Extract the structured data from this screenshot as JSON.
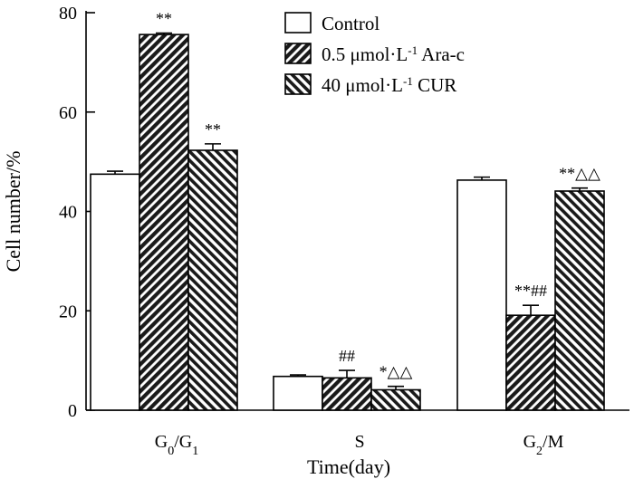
{
  "chart_data": {
    "type": "bar",
    "categories": [
      {
        "main": "G",
        "sub1": "0",
        "mid": "/G",
        "sub2": "1"
      },
      {
        "main": "S",
        "sub1": "",
        "mid": "",
        "sub2": ""
      },
      {
        "main": "G",
        "sub1": "2",
        "mid": "/M",
        "sub2": ""
      }
    ],
    "xlabel": "Time(day)",
    "ylabel": "Cell number/%",
    "ylim": [
      0,
      80
    ],
    "yticks": [
      "0",
      "20",
      "40",
      "60",
      "80"
    ],
    "grid": false,
    "legend_position": "top-right",
    "series": [
      {
        "name": "Control",
        "legend": {
          "pre": "Control",
          "sup": "",
          "post": ""
        },
        "pattern": "none",
        "values": [
          47.5,
          6.8,
          46.3
        ],
        "errors": [
          0.6,
          0.3,
          0.6
        ],
        "annotations": [
          "",
          "",
          ""
        ]
      },
      {
        "name": "0.5 μmol·L-1 Ara-c",
        "legend": {
          "pre": "0.5 μmol·L",
          "sup": "-1",
          "post": " Ara-c"
        },
        "pattern": "forward-hatch",
        "values": [
          75.6,
          6.5,
          19.1
        ],
        "errors": [
          0.3,
          1.5,
          2.0
        ],
        "annotations": [
          "**",
          "##",
          "**##"
        ]
      },
      {
        "name": "40 μmol·L-1 CUR",
        "legend": {
          "pre": "40 μmol·L",
          "sup": "-1",
          "post": " CUR"
        },
        "pattern": "back-hatch",
        "values": [
          52.3,
          4.1,
          44.1
        ],
        "errors": [
          1.3,
          0.7,
          0.6
        ],
        "annotations": [
          "**",
          "*△△",
          "**△△"
        ]
      }
    ]
  }
}
